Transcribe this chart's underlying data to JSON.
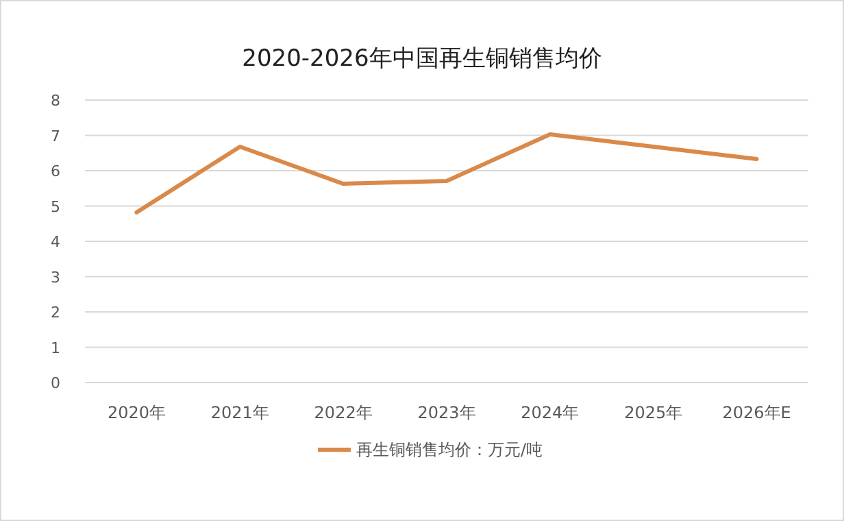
{
  "chart_data": {
    "type": "line",
    "title": "2020-2026年中国再生铜销售均价",
    "categories": [
      "2020年",
      "2021年",
      "2022年",
      "2023年",
      "2024年",
      "2025年",
      "2026年E"
    ],
    "series": [
      {
        "name": "再生铜销售均价：万元/吨",
        "color": "#d9894a",
        "values": [
          4.82,
          6.68,
          5.63,
          5.71,
          7.03,
          6.68,
          6.33
        ]
      }
    ],
    "ylim": [
      0,
      8
    ],
    "yticks": [
      0,
      1,
      2,
      3,
      4,
      5,
      6,
      7,
      8
    ],
    "grid": "y",
    "legend": "bottom",
    "marker": "none",
    "line_style": "solid"
  }
}
